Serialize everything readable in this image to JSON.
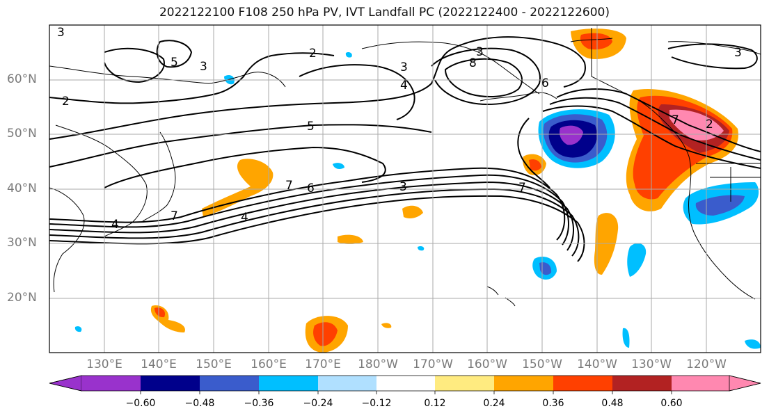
{
  "title": "2022122100 F108 250 hPa PV, IVT Landfall PC (2022122400 - 2022122600)",
  "lat_labels": [
    "60°N",
    "50°N",
    "40°N",
    "30°N",
    "20°N"
  ],
  "lon_labels": [
    "130°E",
    "140°E",
    "150°E",
    "160°E",
    "170°E",
    "180°W",
    "170°W",
    "160°W",
    "150°W",
    "140°W",
    "130°W",
    "120°W"
  ],
  "contour_labels": [
    "3",
    "5",
    "4",
    "3",
    "2",
    "2",
    "3",
    "8",
    "3",
    "4",
    "6",
    "5",
    "7",
    "6",
    "3",
    "7",
    "7",
    "4",
    "7",
    "3",
    "2"
  ],
  "colorbar": {
    "ticks": [
      "−0.60",
      "−0.48",
      "−0.36",
      "−0.24",
      "−0.12",
      "0.12",
      "0.24",
      "0.36",
      "0.48",
      "0.60"
    ],
    "colors": [
      "#9932cc",
      "#00008b",
      "#3a5ccc",
      "#00bfff",
      "#b0e0ff",
      "#ffffff",
      "#ffeb80",
      "#ffa500",
      "#ff4000",
      "#b22222",
      "#ff88b0"
    ]
  }
}
